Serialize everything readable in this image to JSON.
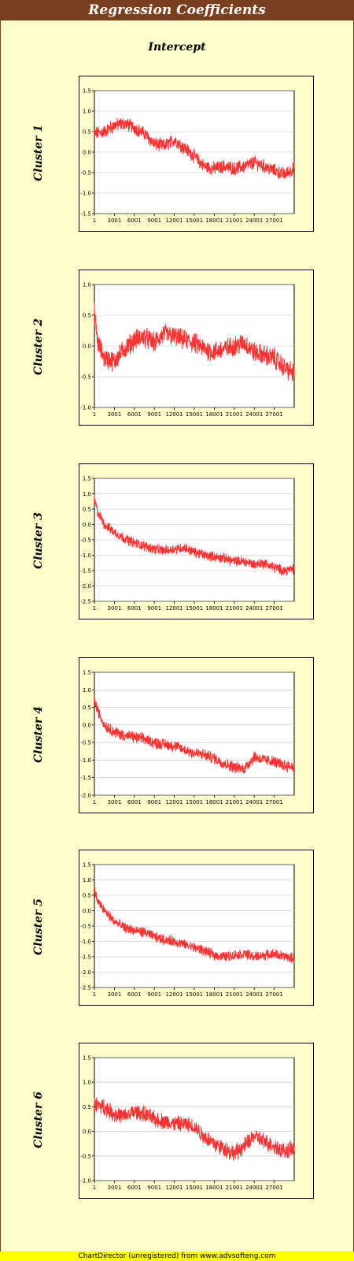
{
  "header": {
    "title": "Regression Coefficients"
  },
  "subtitle": "Intercept",
  "footer": "ChartDirector (unregistered) from www.advsofteng.com",
  "colors": {
    "header_bg": "#7a3f1f",
    "page_bg": "#ffffcc",
    "plot_bg": "#ffffff",
    "line": "#ff3333",
    "footer_bg": "#ffff00"
  },
  "chart_data": [
    {
      "type": "line",
      "title": "Cluster 1",
      "xlabel": "",
      "ylabel": "Cluster 1",
      "x_ticks": [
        "1",
        "3001",
        "6001",
        "9001",
        "12001",
        "15001",
        "18001",
        "21001",
        "24001",
        "27001"
      ],
      "xlim": [
        1,
        30000
      ],
      "ylim": [
        -1.5,
        1.5
      ],
      "y_ticks": [
        "1.5",
        "1.0",
        "0.5",
        "0.0",
        "-0.5",
        "-1.0",
        "-1.5"
      ],
      "grid": true,
      "series": [
        {
          "x": [
            1,
            1500,
            3000,
            4500,
            6000,
            7500,
            9000,
            10500,
            12000,
            13500,
            15000,
            16500,
            18000,
            19500,
            21000,
            22500,
            24000,
            25500,
            27000,
            28500,
            30000
          ],
          "y": [
            0.45,
            0.5,
            0.65,
            0.7,
            0.6,
            0.45,
            0.2,
            0.15,
            0.3,
            0.1,
            -0.1,
            -0.35,
            -0.4,
            -0.35,
            -0.4,
            -0.35,
            -0.25,
            -0.35,
            -0.45,
            -0.55,
            -0.4
          ]
        }
      ]
    },
    {
      "type": "line",
      "title": "Cluster 2",
      "xlabel": "",
      "ylabel": "Cluster 2",
      "x_ticks": [
        "1",
        "3001",
        "6001",
        "9001",
        "12001",
        "15001",
        "18001",
        "21001",
        "24001",
        "27001"
      ],
      "xlim": [
        1,
        30000
      ],
      "ylim": [
        -1.0,
        1.0
      ],
      "y_ticks": [
        "1.0",
        "0.5",
        "0.0",
        "-0.5",
        "-1.0"
      ],
      "grid": true,
      "series": [
        {
          "x": [
            1,
            500,
            1500,
            3000,
            4500,
            6000,
            7500,
            9000,
            10500,
            12000,
            13500,
            15000,
            16500,
            18000,
            19500,
            21000,
            22500,
            24000,
            25500,
            27000,
            28500,
            30000
          ],
          "y": [
            0.55,
            0.05,
            -0.2,
            -0.25,
            -0.05,
            0.1,
            0.15,
            0.05,
            0.2,
            0.15,
            0.1,
            0.05,
            -0.05,
            -0.1,
            -0.05,
            0.0,
            0.05,
            -0.1,
            -0.15,
            -0.2,
            -0.35,
            -0.45
          ]
        }
      ]
    },
    {
      "type": "line",
      "title": "Cluster 3",
      "xlabel": "",
      "ylabel": "Cluster 3",
      "x_ticks": [
        "1",
        "3001",
        "6001",
        "9001",
        "12001",
        "15001",
        "18001",
        "21001",
        "24001",
        "27001"
      ],
      "xlim": [
        1,
        30000
      ],
      "ylim": [
        -2.5,
        1.5
      ],
      "y_ticks": [
        "1.5",
        "1.0",
        "0.5",
        "0.0",
        "-0.5",
        "-1.0",
        "-1.5",
        "-2.0",
        "-2.5"
      ],
      "grid": true,
      "series": [
        {
          "x": [
            1,
            500,
            1500,
            3000,
            4500,
            6000,
            7500,
            9000,
            10500,
            12000,
            13500,
            15000,
            16500,
            18000,
            19500,
            21000,
            22500,
            24000,
            25500,
            27000,
            28500,
            30000
          ],
          "y": [
            0.8,
            0.4,
            0.0,
            -0.25,
            -0.45,
            -0.6,
            -0.7,
            -0.8,
            -0.85,
            -0.8,
            -0.75,
            -0.9,
            -1.0,
            -1.05,
            -1.1,
            -1.2,
            -1.2,
            -1.3,
            -1.25,
            -1.4,
            -1.5,
            -1.45
          ]
        }
      ]
    },
    {
      "type": "line",
      "title": "Cluster 4",
      "xlabel": "",
      "ylabel": "Cluster 4",
      "x_ticks": [
        "1",
        "3001",
        "6001",
        "9001",
        "12001",
        "15001",
        "18001",
        "21001",
        "24001",
        "27001"
      ],
      "xlim": [
        1,
        30000
      ],
      "ylim": [
        -2.0,
        1.5
      ],
      "y_ticks": [
        "1.5",
        "1.0",
        "0.5",
        "0.0",
        "-0.5",
        "-1.0",
        "-1.5",
        "-2.0"
      ],
      "grid": true,
      "series": [
        {
          "x": [
            1,
            500,
            1500,
            3000,
            4500,
            6000,
            7500,
            9000,
            10500,
            12000,
            13500,
            15000,
            16500,
            18000,
            19500,
            21000,
            22500,
            24000,
            25500,
            27000,
            28500,
            30000
          ],
          "y": [
            0.7,
            0.4,
            0.0,
            -0.2,
            -0.3,
            -0.35,
            -0.4,
            -0.5,
            -0.55,
            -0.6,
            -0.7,
            -0.8,
            -0.85,
            -0.95,
            -1.1,
            -1.2,
            -1.25,
            -0.9,
            -1.0,
            -1.05,
            -1.15,
            -1.2
          ]
        }
      ]
    },
    {
      "type": "line",
      "title": "Cluster 5",
      "xlabel": "",
      "ylabel": "Cluster 5",
      "x_ticks": [
        "1",
        "3001",
        "6001",
        "9001",
        "12001",
        "15001",
        "18001",
        "21001",
        "24001",
        "27001"
      ],
      "xlim": [
        1,
        30000
      ],
      "ylim": [
        -2.5,
        1.5
      ],
      "y_ticks": [
        "1.5",
        "1.0",
        "0.5",
        "0.0",
        "-0.5",
        "-1.0",
        "-1.5",
        "-2.0",
        "-2.5"
      ],
      "grid": true,
      "series": [
        {
          "x": [
            1,
            500,
            1500,
            3000,
            4500,
            6000,
            7500,
            9000,
            10500,
            12000,
            13500,
            15000,
            16500,
            18000,
            19500,
            21000,
            22500,
            24000,
            25500,
            27000,
            28500,
            30000
          ],
          "y": [
            0.7,
            0.3,
            0.0,
            -0.35,
            -0.55,
            -0.65,
            -0.7,
            -0.85,
            -0.95,
            -1.0,
            -1.1,
            -1.2,
            -1.3,
            -1.45,
            -1.5,
            -1.45,
            -1.4,
            -1.5,
            -1.45,
            -1.4,
            -1.5,
            -1.55
          ]
        }
      ]
    },
    {
      "type": "line",
      "title": "Cluster 6",
      "xlabel": "",
      "ylabel": "Cluster 6",
      "x_ticks": [
        "1",
        "3001",
        "6001",
        "9001",
        "12001",
        "15001",
        "18001",
        "21001",
        "24001",
        "27001"
      ],
      "xlim": [
        1,
        30000
      ],
      "ylim": [
        -1.0,
        1.5
      ],
      "y_ticks": [
        "1.5",
        "1.0",
        "0.5",
        "0.0",
        "-0.5",
        "-1.0"
      ],
      "grid": true,
      "series": [
        {
          "x": [
            1,
            1500,
            3000,
            4500,
            6000,
            7500,
            9000,
            10500,
            12000,
            13500,
            15000,
            16500,
            18000,
            19500,
            21000,
            22500,
            24000,
            25500,
            27000,
            28500,
            30000
          ],
          "y": [
            0.55,
            0.5,
            0.35,
            0.3,
            0.4,
            0.35,
            0.25,
            0.2,
            0.15,
            0.15,
            0.1,
            -0.1,
            -0.25,
            -0.35,
            -0.45,
            -0.3,
            -0.1,
            -0.2,
            -0.3,
            -0.4,
            -0.35
          ]
        }
      ]
    }
  ]
}
